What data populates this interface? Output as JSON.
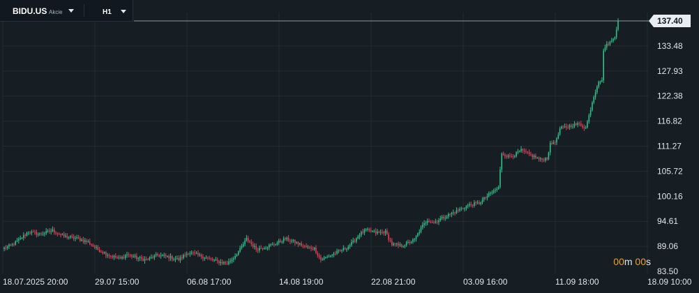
{
  "header": {
    "symbol": "BIDU.US",
    "asset_class": "Akcie",
    "timeframe": "H1"
  },
  "countdown": {
    "minutes": "00",
    "minutes_unit": "m",
    "seconds": "00",
    "seconds_unit": "s"
  },
  "colors": {
    "background": "#161d23",
    "up": "#2ec28e",
    "down": "#e0415a",
    "grid": "#222c34",
    "price_line": "#8e9aa4",
    "price_tag": "#e8edf2"
  },
  "chart_data": {
    "type": "candlestick",
    "y_ticks": [
      "137.40",
      "133.48",
      "127.93",
      "122.38",
      "116.82",
      "111.27",
      "105.72",
      "100.16",
      "94.61",
      "89.06",
      "83.50"
    ],
    "ylim": [
      83.5,
      137.4
    ],
    "last_price": "137.40",
    "last_price_value": 137.4,
    "x_ticks": [
      "18.07.2025 20:00",
      "29.07 15:00",
      "06.08 17:00",
      "14.08 19:00",
      "22.08 21:00",
      "03.09 16:00",
      "11.09 18:00",
      "18.09 10:00"
    ],
    "grid": true,
    "close_path": [
      {
        "i": 0,
        "p": 88.5
      },
      {
        "i": 5,
        "p": 89.2
      },
      {
        "i": 10,
        "p": 90.5
      },
      {
        "i": 15,
        "p": 92.0
      },
      {
        "i": 22,
        "p": 91.5
      },
      {
        "i": 30,
        "p": 92.3
      },
      {
        "i": 37,
        "p": 91.0
      },
      {
        "i": 45,
        "p": 90.6
      },
      {
        "i": 52,
        "p": 89.8
      },
      {
        "i": 58,
        "p": 88.2
      },
      {
        "i": 66,
        "p": 86.8
      },
      {
        "i": 72,
        "p": 86.2
      },
      {
        "i": 76,
        "p": 87.2
      },
      {
        "i": 82,
        "p": 86.4
      },
      {
        "i": 88,
        "p": 86.0
      },
      {
        "i": 95,
        "p": 87.0
      },
      {
        "i": 102,
        "p": 86.6
      },
      {
        "i": 108,
        "p": 86.0
      },
      {
        "i": 114,
        "p": 87.6
      },
      {
        "i": 120,
        "p": 87.0
      },
      {
        "i": 126,
        "p": 86.3
      },
      {
        "i": 132,
        "p": 85.6
      },
      {
        "i": 138,
        "p": 85.2
      },
      {
        "i": 142,
        "p": 86.5
      },
      {
        "i": 146,
        "p": 88.2
      },
      {
        "i": 150,
        "p": 90.5
      },
      {
        "i": 156,
        "p": 88.3
      },
      {
        "i": 162,
        "p": 88.8
      },
      {
        "i": 168,
        "p": 89.5
      },
      {
        "i": 174,
        "p": 90.5
      },
      {
        "i": 180,
        "p": 89.8
      },
      {
        "i": 186,
        "p": 88.8
      },
      {
        "i": 192,
        "p": 88.4
      },
      {
        "i": 196,
        "p": 86.0
      },
      {
        "i": 200,
        "p": 86.6
      },
      {
        "i": 206,
        "p": 87.6
      },
      {
        "i": 212,
        "p": 88.6
      },
      {
        "i": 216,
        "p": 89.8
      },
      {
        "i": 220,
        "p": 91.5
      },
      {
        "i": 224,
        "p": 92.4
      },
      {
        "i": 230,
        "p": 91.8
      },
      {
        "i": 236,
        "p": 92.0
      },
      {
        "i": 240,
        "p": 89.3
      },
      {
        "i": 246,
        "p": 89.0
      },
      {
        "i": 250,
        "p": 89.6
      },
      {
        "i": 254,
        "p": 90.3
      },
      {
        "i": 258,
        "p": 92.8
      },
      {
        "i": 262,
        "p": 94.6
      },
      {
        "i": 266,
        "p": 94.0
      },
      {
        "i": 270,
        "p": 94.8
      },
      {
        "i": 276,
        "p": 95.8
      },
      {
        "i": 282,
        "p": 96.8
      },
      {
        "i": 288,
        "p": 97.8
      },
      {
        "i": 294,
        "p": 98.2
      },
      {
        "i": 300,
        "p": 100.0
      },
      {
        "i": 306,
        "p": 101.5
      },
      {
        "i": 308,
        "p": 109.0
      },
      {
        "i": 312,
        "p": 108.2
      },
      {
        "i": 316,
        "p": 108.6
      },
      {
        "i": 320,
        "p": 109.5
      },
      {
        "i": 324,
        "p": 108.8
      },
      {
        "i": 328,
        "p": 108.2
      },
      {
        "i": 332,
        "p": 107.5
      },
      {
        "i": 336,
        "p": 107.9
      },
      {
        "i": 338,
        "p": 110.8
      },
      {
        "i": 342,
        "p": 111.8
      },
      {
        "i": 344,
        "p": 114.2
      },
      {
        "i": 348,
        "p": 114.6
      },
      {
        "i": 352,
        "p": 115.0
      },
      {
        "i": 356,
        "p": 115.2
      },
      {
        "i": 360,
        "p": 114.4
      },
      {
        "i": 362,
        "p": 117.0
      },
      {
        "i": 364,
        "p": 120.0
      },
      {
        "i": 368,
        "p": 124.6
      },
      {
        "i": 370,
        "p": 124.4
      },
      {
        "i": 371,
        "p": 131.3
      },
      {
        "i": 374,
        "p": 132.6
      },
      {
        "i": 376,
        "p": 133.0
      },
      {
        "i": 378,
        "p": 134.2
      },
      {
        "i": 380,
        "p": 137.4
      }
    ]
  }
}
